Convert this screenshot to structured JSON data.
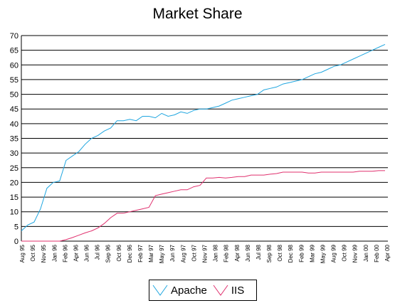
{
  "chart_data": {
    "type": "line",
    "title": "Market Share",
    "xlabel": "",
    "ylabel": "",
    "ylim": [
      0,
      70
    ],
    "yticks": [
      0,
      5,
      10,
      15,
      20,
      25,
      30,
      35,
      40,
      45,
      50,
      55,
      60,
      65,
      70
    ],
    "grid": "horizontal",
    "legend": "bottom-center",
    "x_tick_labels": [
      "Aug 95",
      "Oct 95",
      "Nov 95",
      "Jan 96",
      "Feb 96",
      "Apr 96",
      "Jun 96",
      "Jul 96",
      "Sep 96",
      "Oct 96",
      "Dec 96",
      "Feb 97",
      "Mar 97",
      "May 97",
      "Jun 97",
      "Aug 97",
      "Oct 97",
      "Nov 97",
      "Jan 98",
      "Feb 98",
      "Apr 98",
      "Jun 98",
      "Jul 98",
      "Sep 98",
      "Oct 98",
      "Dec 98",
      "Feb 99",
      "Mar 99",
      "May 99",
      "Aug 99",
      "Oct 99",
      "Nov 99",
      "Jan 00",
      "Feb 00",
      "Apr 00"
    ],
    "series": [
      {
        "name": "Apache",
        "color": "#1fa6e0",
        "values": [
          3.5,
          5.5,
          6.5,
          11,
          18,
          20,
          20.5,
          27.5,
          29,
          30.5,
          33,
          35,
          36,
          37.5,
          38.5,
          41,
          41,
          41.5,
          41,
          42.5,
          42.5,
          42,
          43.5,
          42.5,
          43,
          44,
          43.5,
          44.5,
          45,
          45,
          45.5,
          46,
          47,
          48,
          48.5,
          49,
          49.5,
          50,
          51.5,
          52,
          52.5,
          53.5,
          54,
          54.5,
          55,
          56,
          57,
          57.5,
          58.5,
          59.5,
          60,
          61,
          62,
          63,
          64,
          65,
          66,
          67
        ]
      },
      {
        "name": "IIS",
        "color": "#e0306e",
        "values": [
          0,
          0,
          0,
          0,
          0,
          0,
          0,
          0.5,
          1.2,
          2,
          2.8,
          3.5,
          4.5,
          6,
          8,
          9.5,
          9.5,
          10,
          10.5,
          11,
          11.5,
          15.5,
          16,
          16.5,
          17,
          17.5,
          17.5,
          18.5,
          19,
          21.5,
          21.5,
          21.7,
          21.5,
          21.7,
          22,
          22,
          22.5,
          22.5,
          22.5,
          22.8,
          23,
          23.5,
          23.5,
          23.5,
          23.5,
          23.2,
          23.2,
          23.5,
          23.5,
          23.5,
          23.5,
          23.5,
          23.5,
          23.8,
          23.8,
          23.8,
          24,
          24
        ]
      }
    ]
  }
}
